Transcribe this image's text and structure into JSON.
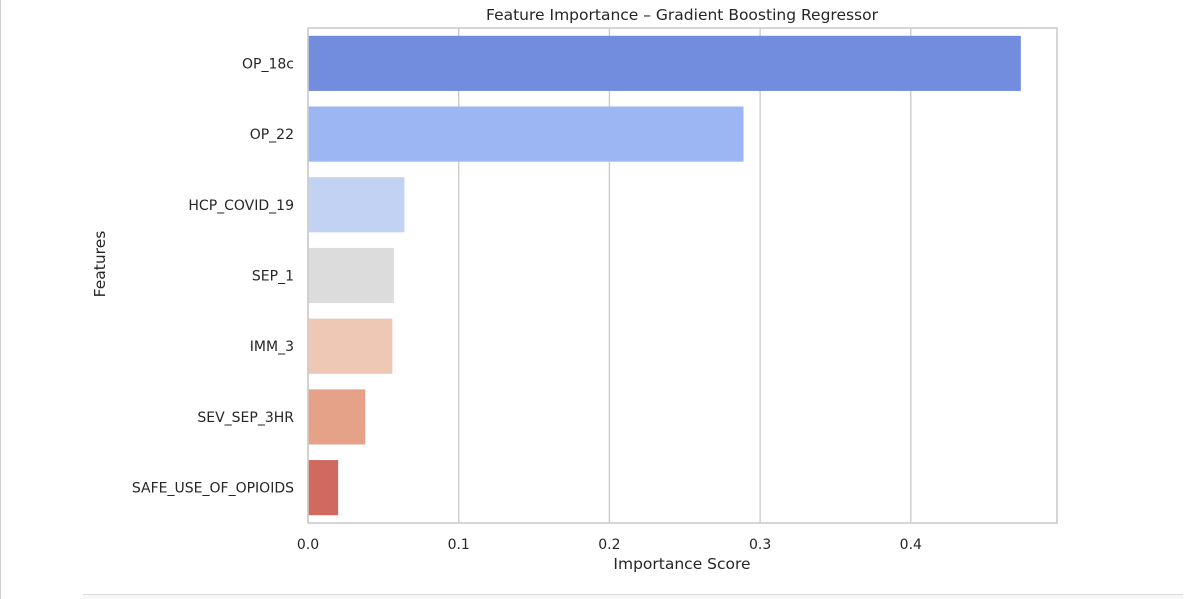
{
  "chart_data": {
    "type": "bar",
    "orientation": "horizontal",
    "title": "Feature Importance – Gradient Boosting Regressor",
    "xlabel": "Importance Score",
    "ylabel": "Features",
    "categories": [
      "OP_18c",
      "OP_22",
      "HCP_COVID_19",
      "SEP_1",
      "IMM_3",
      "SEV_SEP_3HR",
      "SAFE_USE_OF_OPIOIDS"
    ],
    "values": [
      0.473,
      0.289,
      0.064,
      0.057,
      0.056,
      0.038,
      0.02
    ],
    "colors": [
      "#738dde",
      "#9bb6f2",
      "#c2d2f2",
      "#dcdcdc",
      "#eec7b5",
      "#e6a189",
      "#d06a5e"
    ],
    "xlim": [
      0,
      0.497
    ],
    "xticks": [
      0.0,
      0.1,
      0.2,
      0.3,
      0.4
    ],
    "xtick_labels": [
      "0.0",
      "0.1",
      "0.2",
      "0.3",
      "0.4"
    ],
    "grid": "vertical",
    "grid_color": "#cccccc",
    "spine_color": "#cccccc"
  }
}
